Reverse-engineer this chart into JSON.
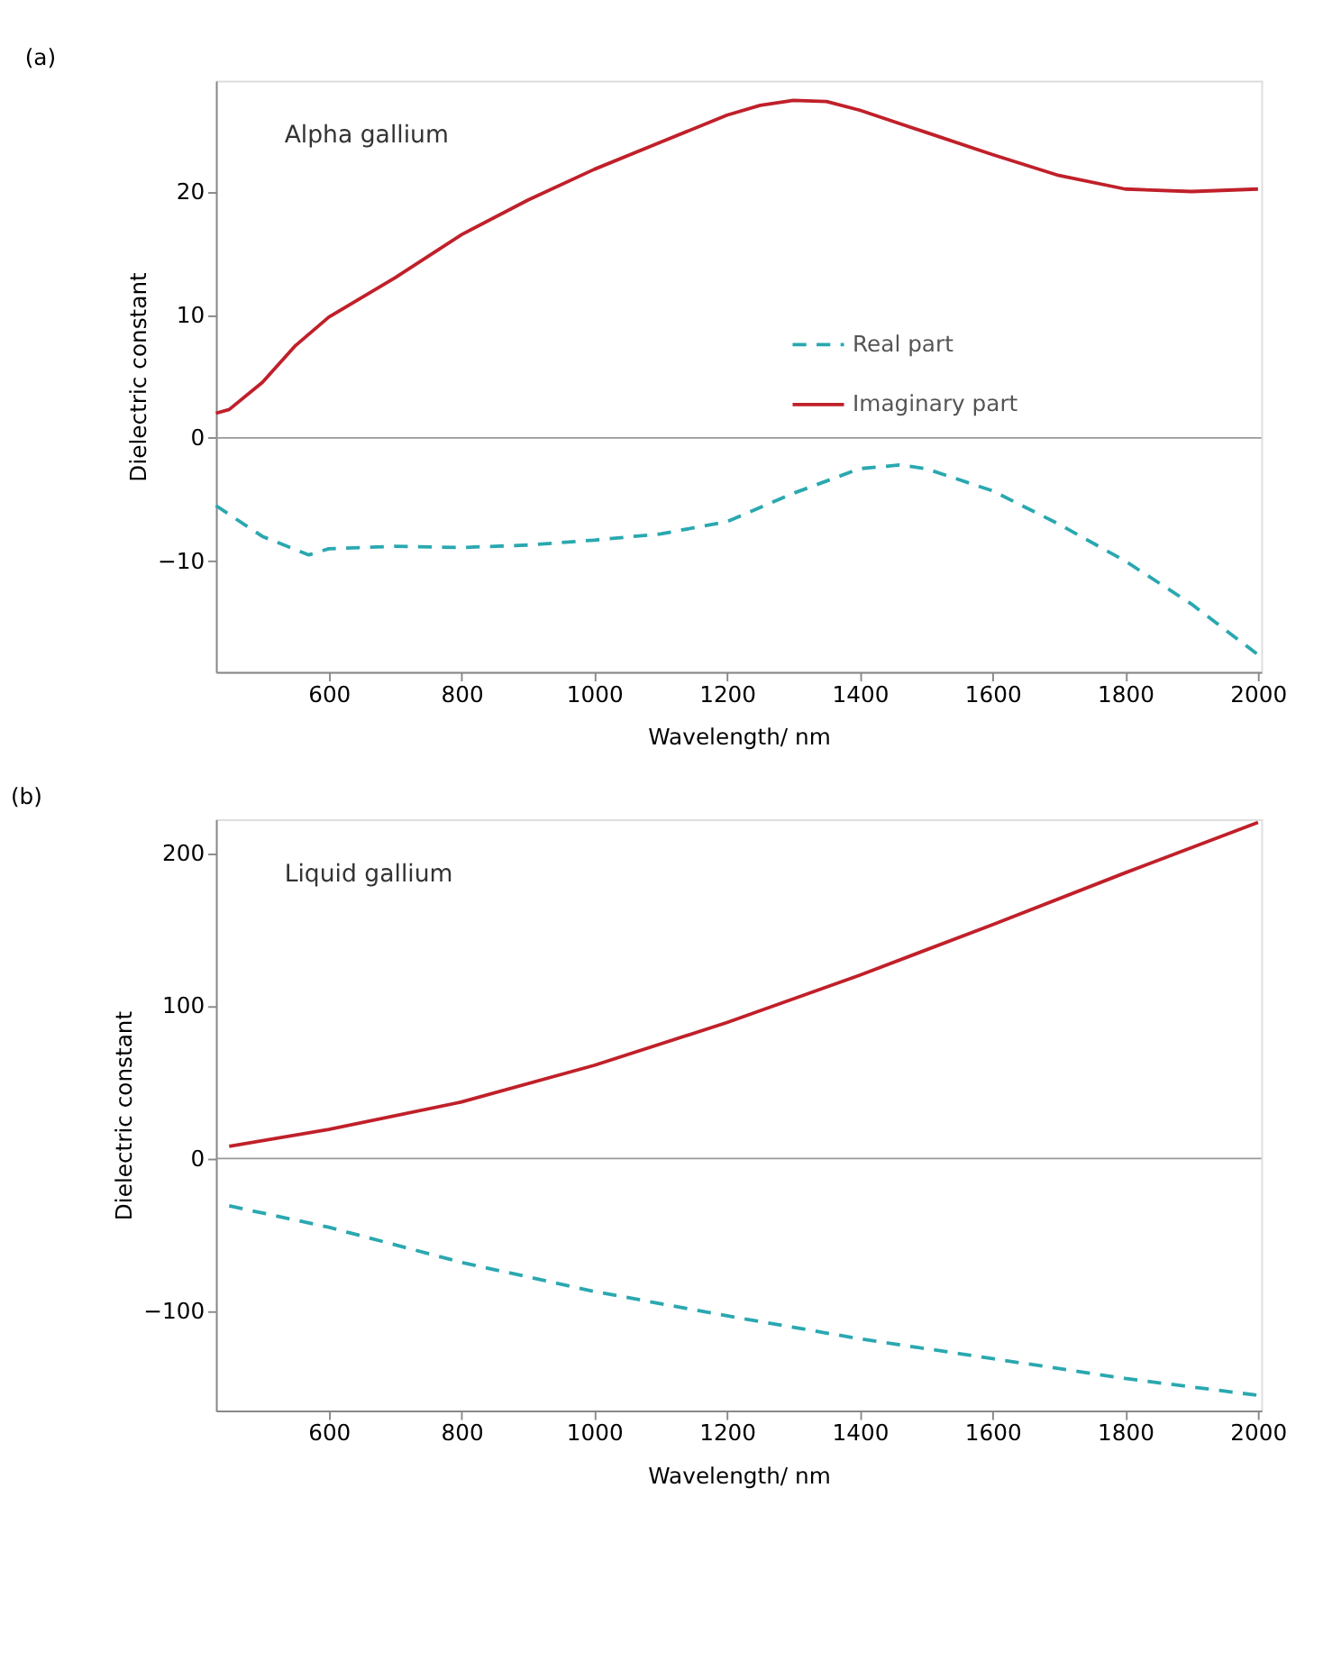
{
  "chart_data": [
    {
      "type": "line",
      "title": "(a)",
      "xlabel": "Wavelength/ nm",
      "ylabel": "Dielectric constant",
      "annotations": [
        "Alpha gallium"
      ],
      "xlim": [
        430,
        2005
      ],
      "xticks": [
        600,
        800,
        1000,
        1200,
        1400,
        1600,
        1800,
        2000
      ],
      "ylim": [
        -19,
        29
      ],
      "yticks": [
        -10,
        0,
        10,
        20
      ],
      "grid": false,
      "legend": "right",
      "ref_lines": [
        {
          "axis": "y",
          "value": 0,
          "label": null,
          "color": "#999999"
        }
      ],
      "series": [
        {
          "name": "Real part",
          "color": "#2aa8b0",
          "line_style": "dashed",
          "x": [
            430,
            500,
            570,
            600,
            700,
            800,
            900,
            1000,
            1100,
            1200,
            1300,
            1400,
            1460,
            1500,
            1600,
            1700,
            1800,
            1900,
            2000
          ],
          "values": [
            -5.5,
            -8,
            -9.5,
            -9,
            -8.8,
            -8.9,
            -8.7,
            -8.3,
            -7.8,
            -6.8,
            -4.5,
            -2.5,
            -2.2,
            -2.5,
            -4.3,
            -7,
            -10,
            -13.5,
            -17.6
          ]
        },
        {
          "name": "Imaginary part",
          "color": "#c0202a",
          "line_style": "solid",
          "x": [
            430,
            450,
            500,
            550,
            600,
            700,
            800,
            900,
            1000,
            1100,
            1200,
            1250,
            1300,
            1350,
            1400,
            1500,
            1600,
            1700,
            1800,
            1900,
            2000
          ],
          "values": [
            2.0,
            2.3,
            4.5,
            7.5,
            9.8,
            13,
            16.5,
            19.3,
            21.8,
            24,
            26.2,
            27,
            27.4,
            27.3,
            26.6,
            24.8,
            23,
            21.3,
            20.2,
            20,
            20.2
          ]
        }
      ]
    },
    {
      "type": "line",
      "title": "(b)",
      "xlabel": "Wavelength/ nm",
      "ylabel": "Dielectric constant",
      "annotations": [
        "Liquid gallium"
      ],
      "xlim": [
        430,
        2005
      ],
      "xticks": [
        600,
        800,
        1000,
        1200,
        1400,
        1600,
        1800,
        2000
      ],
      "ylim": [
        -165,
        222
      ],
      "yticks": [
        -100,
        0,
        100,
        200
      ],
      "grid": false,
      "legend": "right",
      "ref_lines": [
        {
          "axis": "y",
          "value": 0,
          "label": null,
          "color": "#999999"
        }
      ],
      "series": [
        {
          "name": "Real part",
          "color": "#2aa8b0",
          "line_style": "dashed",
          "x": [
            450,
            600,
            800,
            1000,
            1200,
            1400,
            1600,
            1800,
            2000
          ],
          "values": [
            -31,
            -45,
            -68,
            -87,
            -103,
            -118,
            -131,
            -144,
            -155
          ]
        },
        {
          "name": "Imaginary part",
          "color": "#d03030",
          "line_style": "solid",
          "x": [
            450,
            600,
            800,
            1000,
            1200,
            1400,
            1600,
            1800,
            2000
          ],
          "values": [
            8,
            19,
            37,
            61,
            89,
            120,
            153,
            187,
            220
          ]
        }
      ]
    }
  ]
}
